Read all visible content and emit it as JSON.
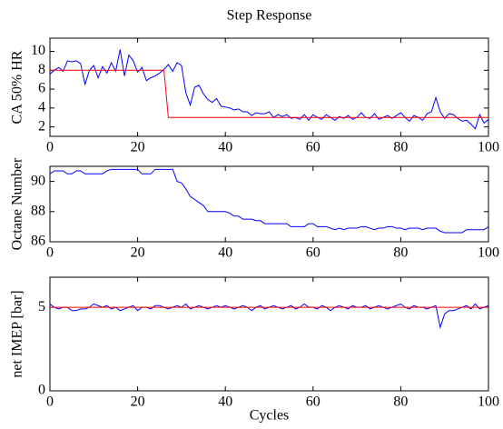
{
  "chart_data": [
    {
      "type": "line",
      "title": "Step Response",
      "ylabel": "CA 50% HR",
      "x": [
        0,
        1,
        2,
        3,
        4,
        5,
        6,
        7,
        8,
        9,
        10,
        11,
        12,
        13,
        14,
        15,
        16,
        17,
        18,
        19,
        20,
        21,
        22,
        23,
        24,
        25,
        26,
        27,
        28,
        29,
        30,
        31,
        32,
        33,
        34,
        35,
        36,
        37,
        38,
        39,
        40,
        41,
        42,
        43,
        44,
        45,
        46,
        47,
        48,
        49,
        50,
        51,
        52,
        53,
        54,
        55,
        56,
        57,
        58,
        59,
        60,
        61,
        62,
        63,
        64,
        65,
        66,
        67,
        68,
        69,
        70,
        71,
        72,
        73,
        74,
        75,
        76,
        77,
        78,
        79,
        80,
        81,
        82,
        83,
        84,
        85,
        86,
        87,
        88,
        89,
        90,
        91,
        92,
        93,
        94,
        95,
        96,
        97,
        98,
        99,
        100
      ],
      "xlim": [
        0,
        100
      ],
      "xticks": [
        0,
        20,
        40,
        60,
        80,
        100
      ],
      "ylim": [
        1,
        11.4
      ],
      "yticks": [
        2,
        4,
        6,
        8,
        10
      ],
      "series": [
        {
          "color": "#0000ff",
          "values": [
            7.6,
            8.0,
            8.3,
            7.9,
            9.0,
            8.9,
            9.0,
            8.7,
            6.5,
            8.0,
            8.5,
            7.2,
            8.4,
            7.7,
            8.8,
            7.9,
            10.2,
            7.4,
            9.6,
            9.0,
            7.8,
            8.3,
            6.9,
            7.2,
            7.4,
            7.7,
            8.1,
            8.6,
            7.9,
            8.8,
            8.5,
            5.6,
            4.3,
            6.2,
            6.4,
            5.5,
            4.9,
            4.6,
            5.0,
            4.2,
            4.1,
            4.0,
            3.8,
            3.9,
            3.6,
            3.6,
            3.2,
            3.5,
            3.4,
            3.4,
            3.6,
            3.0,
            3.3,
            3.1,
            3.3,
            2.9,
            3.0,
            2.8,
            3.3,
            2.7,
            3.3,
            3.0,
            2.8,
            3.3,
            3.0,
            2.7,
            3.1,
            2.9,
            3.2,
            2.8,
            3.0,
            3.5,
            3.0,
            2.9,
            3.4,
            2.8,
            3.0,
            3.2,
            2.9,
            3.2,
            3.5,
            3.0,
            2.6,
            3.2,
            3.0,
            2.7,
            3.4,
            3.6,
            5.1,
            3.6,
            2.9,
            3.4,
            3.3,
            2.9,
            2.6,
            2.7,
            2.3,
            1.8,
            3.3,
            2.4,
            2.8
          ]
        },
        {
          "color": "#ff0000",
          "values": [
            8,
            8,
            8,
            8,
            8,
            8,
            8,
            8,
            8,
            8,
            8,
            8,
            8,
            8,
            8,
            8,
            8,
            8,
            8,
            8,
            8,
            8,
            8,
            8,
            8,
            8,
            8,
            3,
            3,
            3,
            3,
            3,
            3,
            3,
            3,
            3,
            3,
            3,
            3,
            3,
            3,
            3,
            3,
            3,
            3,
            3,
            3,
            3,
            3,
            3,
            3,
            3,
            3,
            3,
            3,
            3,
            3,
            3,
            3,
            3,
            3,
            3,
            3,
            3,
            3,
            3,
            3,
            3,
            3,
            3,
            3,
            3,
            3,
            3,
            3,
            3,
            3,
            3,
            3,
            3,
            3,
            3,
            3,
            3,
            3,
            3,
            3,
            3,
            3,
            3,
            3,
            3,
            3,
            3,
            3,
            3,
            3,
            3,
            3,
            3,
            3
          ]
        }
      ]
    },
    {
      "type": "line",
      "ylabel": "Octane Number",
      "x": [
        0,
        1,
        2,
        3,
        4,
        5,
        6,
        7,
        8,
        9,
        10,
        11,
        12,
        13,
        14,
        15,
        16,
        17,
        18,
        19,
        20,
        21,
        22,
        23,
        24,
        25,
        26,
        27,
        28,
        29,
        30,
        31,
        32,
        33,
        34,
        35,
        36,
        37,
        38,
        39,
        40,
        41,
        42,
        43,
        44,
        45,
        46,
        47,
        48,
        49,
        50,
        51,
        52,
        53,
        54,
        55,
        56,
        57,
        58,
        59,
        60,
        61,
        62,
        63,
        64,
        65,
        66,
        67,
        68,
        69,
        70,
        71,
        72,
        73,
        74,
        75,
        76,
        77,
        78,
        79,
        80,
        81,
        82,
        83,
        84,
        85,
        86,
        87,
        88,
        89,
        90,
        91,
        92,
        93,
        94,
        95,
        96,
        97,
        98,
        99,
        100
      ],
      "xlim": [
        0,
        100
      ],
      "xticks": [
        0,
        20,
        40,
        60,
        80,
        100
      ],
      "ylim": [
        86,
        91
      ],
      "yticks": [
        86,
        88,
        90
      ],
      "series": [
        {
          "color": "#0000ff",
          "values": [
            90.5,
            90.7,
            90.7,
            90.7,
            90.5,
            90.5,
            90.7,
            90.7,
            90.5,
            90.5,
            90.5,
            90.5,
            90.5,
            90.7,
            90.8,
            90.8,
            90.8,
            90.8,
            90.8,
            90.8,
            90.8,
            90.5,
            90.5,
            90.5,
            90.8,
            90.8,
            90.8,
            90.8,
            90.8,
            90.0,
            89.9,
            89.5,
            89.0,
            88.8,
            88.6,
            88.4,
            88.0,
            88.0,
            88.0,
            88.0,
            88.0,
            87.9,
            87.7,
            87.7,
            87.5,
            87.5,
            87.5,
            87.4,
            87.4,
            87.2,
            87.2,
            87.2,
            87.2,
            87.2,
            87.2,
            87.0,
            87.0,
            87.0,
            87.0,
            87.2,
            87.2,
            87.0,
            87.0,
            87.0,
            86.9,
            86.8,
            86.9,
            86.8,
            86.9,
            86.9,
            86.9,
            87.0,
            87.0,
            86.9,
            86.8,
            86.9,
            86.9,
            87.0,
            87.0,
            86.9,
            86.9,
            86.8,
            86.9,
            86.9,
            86.9,
            86.8,
            86.9,
            86.9,
            86.9,
            86.7,
            86.6,
            86.6,
            86.6,
            86.6,
            86.6,
            86.8,
            86.8,
            86.8,
            86.8,
            86.8,
            87.0
          ]
        }
      ]
    },
    {
      "type": "line",
      "ylabel": "net IMEP [bar]",
      "xlabel": "Cycles",
      "x": [
        0,
        1,
        2,
        3,
        4,
        5,
        6,
        7,
        8,
        9,
        10,
        11,
        12,
        13,
        14,
        15,
        16,
        17,
        18,
        19,
        20,
        21,
        22,
        23,
        24,
        25,
        26,
        27,
        28,
        29,
        30,
        31,
        32,
        33,
        34,
        35,
        36,
        37,
        38,
        39,
        40,
        41,
        42,
        43,
        44,
        45,
        46,
        47,
        48,
        49,
        50,
        51,
        52,
        53,
        54,
        55,
        56,
        57,
        58,
        59,
        60,
        61,
        62,
        63,
        64,
        65,
        66,
        67,
        68,
        69,
        70,
        71,
        72,
        73,
        74,
        75,
        76,
        77,
        78,
        79,
        80,
        81,
        82,
        83,
        84,
        85,
        86,
        87,
        88,
        89,
        90,
        91,
        92,
        93,
        94,
        95,
        96,
        97,
        98,
        99,
        100
      ],
      "xlim": [
        0,
        100
      ],
      "xticks": [
        0,
        20,
        40,
        60,
        80,
        100
      ],
      "ylim": [
        0,
        6.8
      ],
      "yticks": [
        0,
        5
      ],
      "series": [
        {
          "color": "#0000ff",
          "values": [
            5.2,
            5.0,
            4.9,
            5.0,
            5.0,
            4.8,
            4.8,
            4.9,
            4.9,
            5.0,
            5.2,
            5.1,
            5.0,
            5.1,
            4.9,
            5.0,
            4.8,
            4.9,
            5.0,
            5.1,
            4.8,
            5.0,
            5.0,
            4.9,
            5.1,
            5.1,
            5.0,
            4.9,
            5.0,
            5.1,
            5.0,
            5.2,
            4.9,
            5.0,
            5.1,
            5.0,
            4.9,
            5.0,
            5.1,
            5.0,
            5.1,
            5.0,
            4.9,
            5.0,
            5.1,
            5.0,
            4.8,
            5.0,
            5.1,
            4.9,
            5.0,
            5.1,
            5.0,
            4.9,
            5.0,
            5.1,
            4.9,
            5.0,
            5.2,
            5.0,
            5.0,
            4.9,
            5.1,
            5.0,
            4.8,
            5.0,
            5.1,
            5.0,
            4.9,
            5.1,
            5.0,
            5.0,
            5.1,
            4.9,
            5.0,
            5.1,
            5.0,
            4.9,
            5.0,
            5.1,
            5.2,
            5.0,
            4.9,
            5.1,
            5.0,
            5.0,
            4.9,
            5.0,
            5.1,
            3.8,
            4.6,
            4.8,
            4.8,
            4.9,
            5.0,
            5.1,
            4.9,
            5.2,
            4.9,
            5.0,
            5.1
          ]
        },
        {
          "color": "#ff0000",
          "values": [
            5,
            5,
            5,
            5,
            5,
            5,
            5,
            5,
            5,
            5,
            5,
            5,
            5,
            5,
            5,
            5,
            5,
            5,
            5,
            5,
            5,
            5,
            5,
            5,
            5,
            5,
            5,
            5,
            5,
            5,
            5,
            5,
            5,
            5,
            5,
            5,
            5,
            5,
            5,
            5,
            5,
            5,
            5,
            5,
            5,
            5,
            5,
            5,
            5,
            5,
            5,
            5,
            5,
            5,
            5,
            5,
            5,
            5,
            5,
            5,
            5,
            5,
            5,
            5,
            5,
            5,
            5,
            5,
            5,
            5,
            5,
            5,
            5,
            5,
            5,
            5,
            5,
            5,
            5,
            5,
            5,
            5,
            5,
            5,
            5,
            5,
            5,
            5,
            5,
            5,
            5,
            5,
            5,
            5,
            5,
            5,
            5,
            5,
            5,
            5,
            5
          ]
        }
      ]
    }
  ]
}
